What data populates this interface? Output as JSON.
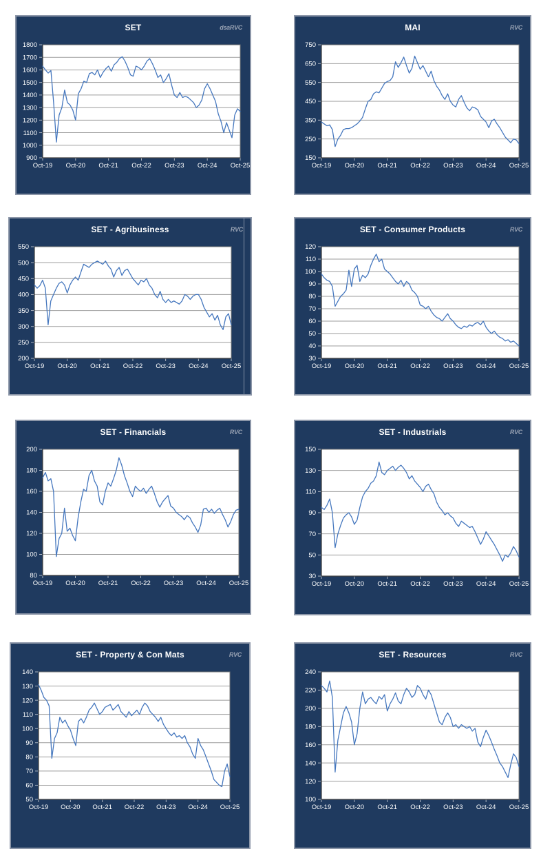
{
  "colors": {
    "page_bg": "#ffffff",
    "panel_bg": "#1f3a5f",
    "panel_border": "#8c96a8",
    "plot_bg": "#ffffff",
    "gridline": "#9b9b9b",
    "axis_line": "#404040",
    "tick_mark": "#aeb6c2",
    "tick_label": "#ffffff",
    "series_line": "#4577be",
    "watermark": "#98a2b3"
  },
  "watermark_default": "RVC",
  "chart_data": [
    {
      "type": "line",
      "title": "SET",
      "watermark": "dsaRVC",
      "ylim": [
        900,
        1800
      ],
      "ystep": 100,
      "x_ticks": [
        "Oct-19",
        "Oct-20",
        "Oct-21",
        "Oct-22",
        "Oct-23",
        "Oct-24",
        "Oct-25"
      ],
      "resolution": "monthly",
      "values": [
        1630,
        1600,
        1575,
        1595,
        1340,
        1025,
        1240,
        1300,
        1440,
        1340,
        1320,
        1280,
        1200,
        1410,
        1450,
        1510,
        1500,
        1570,
        1580,
        1560,
        1600,
        1540,
        1580,
        1610,
        1630,
        1590,
        1640,
        1660,
        1690,
        1705,
        1670,
        1620,
        1560,
        1550,
        1630,
        1620,
        1600,
        1630,
        1670,
        1690,
        1650,
        1600,
        1540,
        1560,
        1500,
        1530,
        1570,
        1480,
        1400,
        1380,
        1420,
        1380,
        1390,
        1380,
        1360,
        1340,
        1300,
        1320,
        1360,
        1450,
        1490,
        1450,
        1400,
        1350,
        1250,
        1190,
        1100,
        1180,
        1120,
        1060,
        1240,
        1290,
        1270
      ]
    },
    {
      "type": "line",
      "title": "MAI",
      "watermark": "RVC",
      "ylim": [
        150,
        750
      ],
      "ystep": 100,
      "x_ticks": [
        "Oct-19",
        "Oct-20",
        "Oct-21",
        "Oct-22",
        "Oct-23",
        "Oct-24",
        "Oct-25"
      ],
      "resolution": "monthly",
      "values": [
        340,
        330,
        320,
        325,
        300,
        210,
        250,
        270,
        300,
        305,
        305,
        310,
        320,
        330,
        345,
        365,
        410,
        450,
        460,
        490,
        500,
        495,
        520,
        545,
        555,
        560,
        580,
        660,
        630,
        655,
        685,
        640,
        600,
        625,
        690,
        655,
        620,
        640,
        610,
        580,
        610,
        560,
        530,
        510,
        480,
        460,
        490,
        450,
        430,
        420,
        460,
        480,
        445,
        415,
        400,
        420,
        415,
        405,
        370,
        355,
        340,
        310,
        345,
        355,
        330,
        310,
        285,
        260,
        245,
        230,
        250,
        245,
        225
      ]
    },
    {
      "type": "line",
      "title": "SET - Agribusiness",
      "watermark": "RVC",
      "ylim": [
        200,
        550
      ],
      "ystep": 50,
      "x_ticks": [
        "Oct-19",
        "Oct-20",
        "Oct-21",
        "Oct-22",
        "Oct-23",
        "Oct-24",
        "Oct-25"
      ],
      "resolution": "monthly",
      "values": [
        430,
        420,
        428,
        445,
        420,
        305,
        380,
        400,
        420,
        435,
        440,
        430,
        405,
        430,
        445,
        455,
        445,
        470,
        495,
        490,
        485,
        495,
        500,
        505,
        500,
        495,
        505,
        490,
        480,
        455,
        475,
        485,
        460,
        475,
        480,
        465,
        450,
        440,
        430,
        445,
        440,
        450,
        430,
        420,
        400,
        390,
        410,
        385,
        375,
        385,
        375,
        380,
        375,
        370,
        380,
        400,
        395,
        385,
        395,
        400,
        400,
        385,
        360,
        345,
        330,
        340,
        320,
        335,
        305,
        290,
        330,
        340,
        305
      ]
    },
    {
      "type": "line",
      "title": "SET - Consumer Products",
      "watermark": "RVC",
      "ylim": [
        30,
        120
      ],
      "ystep": 10,
      "x_ticks": [
        "Oct-19",
        "Oct-20",
        "Oct-21",
        "Oct-22",
        "Oct-23",
        "Oct-24",
        "Oct-25"
      ],
      "resolution": "monthly",
      "values": [
        98,
        95,
        93,
        92,
        88,
        72,
        76,
        80,
        82,
        85,
        101,
        88,
        102,
        105,
        92,
        97,
        95,
        98,
        105,
        110,
        114,
        108,
        110,
        102,
        100,
        98,
        95,
        92,
        90,
        93,
        88,
        92,
        90,
        85,
        83,
        80,
        73,
        72,
        70,
        72,
        68,
        65,
        63,
        62,
        60,
        63,
        66,
        62,
        60,
        57,
        55,
        54,
        56,
        55,
        57,
        56,
        58,
        59,
        57,
        60,
        55,
        52,
        50,
        52,
        49,
        47,
        46,
        44,
        45,
        43,
        44,
        42,
        40
      ]
    },
    {
      "type": "line",
      "title": "SET - Financials",
      "watermark": "RVC",
      "ylim": [
        80,
        200
      ],
      "ystep": 20,
      "x_ticks": [
        "Oct-19",
        "Oct-20",
        "Oct-21",
        "Oct-22",
        "Oct-23",
        "Oct-24",
        "Oct-25"
      ],
      "resolution": "monthly",
      "values": [
        173,
        178,
        170,
        172,
        160,
        98,
        115,
        120,
        144,
        122,
        125,
        118,
        113,
        135,
        150,
        162,
        160,
        175,
        180,
        170,
        165,
        150,
        147,
        160,
        168,
        165,
        172,
        180,
        192,
        185,
        175,
        168,
        160,
        155,
        165,
        162,
        160,
        163,
        158,
        162,
        165,
        158,
        150,
        145,
        150,
        153,
        156,
        146,
        144,
        140,
        138,
        136,
        133,
        137,
        135,
        130,
        126,
        121,
        128,
        143,
        144,
        140,
        143,
        139,
        142,
        144,
        138,
        133,
        126,
        131,
        138,
        142,
        143
      ]
    },
    {
      "type": "line",
      "title": "SET - Industrials",
      "watermark": "RVC",
      "ylim": [
        30,
        150
      ],
      "ystep": 20,
      "x_ticks": [
        "Oct-19",
        "Oct-20",
        "Oct-21",
        "Oct-22",
        "Oct-23",
        "Oct-24",
        "Oct-25"
      ],
      "resolution": "monthly",
      "values": [
        95,
        93,
        97,
        103,
        90,
        57,
        70,
        78,
        85,
        88,
        90,
        86,
        79,
        83,
        95,
        105,
        110,
        113,
        118,
        120,
        125,
        138,
        128,
        126,
        130,
        132,
        134,
        130,
        133,
        135,
        132,
        128,
        122,
        125,
        120,
        117,
        114,
        110,
        115,
        117,
        112,
        108,
        100,
        95,
        92,
        88,
        90,
        87,
        85,
        80,
        77,
        82,
        80,
        78,
        76,
        77,
        72,
        66,
        60,
        65,
        72,
        68,
        64,
        60,
        55,
        50,
        44,
        50,
        48,
        52,
        58,
        54,
        48
      ]
    },
    {
      "type": "line",
      "title": "SET - Property & Con Mats",
      "watermark": "RVC",
      "ylim": [
        50,
        140
      ],
      "ystep": 10,
      "x_ticks": [
        "Oct-19",
        "Oct-20",
        "Oct-21",
        "Oct-22",
        "Oct-23",
        "Oct-24",
        "Oct-25"
      ],
      "resolution": "monthly",
      "values": [
        131,
        127,
        122,
        120,
        116,
        79,
        93,
        97,
        108,
        104,
        106,
        102,
        99,
        93,
        88,
        105,
        107,
        104,
        108,
        113,
        115,
        118,
        114,
        110,
        112,
        115,
        116,
        117,
        113,
        115,
        117,
        112,
        110,
        108,
        112,
        109,
        111,
        113,
        110,
        115,
        118,
        116,
        112,
        110,
        108,
        105,
        108,
        103,
        100,
        97,
        95,
        97,
        94,
        95,
        93,
        95,
        90,
        87,
        82,
        79,
        93,
        88,
        85,
        80,
        75,
        70,
        64,
        62,
        60,
        59,
        70,
        75,
        66
      ]
    },
    {
      "type": "line",
      "title": "SET - Resources",
      "watermark": "RVC",
      "ylim": [
        100,
        240
      ],
      "ystep": 20,
      "x_ticks": [
        "Oct-19",
        "Oct-20",
        "Oct-21",
        "Oct-22",
        "Oct-23",
        "Oct-24",
        "Oct-25"
      ],
      "resolution": "monthly",
      "values": [
        225,
        222,
        218,
        230,
        212,
        130,
        165,
        180,
        195,
        202,
        195,
        185,
        160,
        172,
        200,
        218,
        205,
        210,
        212,
        208,
        205,
        213,
        210,
        215,
        197,
        205,
        210,
        217,
        208,
        205,
        215,
        222,
        218,
        212,
        215,
        225,
        222,
        215,
        210,
        220,
        215,
        205,
        195,
        185,
        182,
        190,
        195,
        190,
        180,
        182,
        178,
        182,
        180,
        178,
        180,
        175,
        178,
        163,
        158,
        168,
        176,
        170,
        163,
        155,
        148,
        140,
        136,
        130,
        124,
        138,
        150,
        146,
        136
      ]
    }
  ]
}
